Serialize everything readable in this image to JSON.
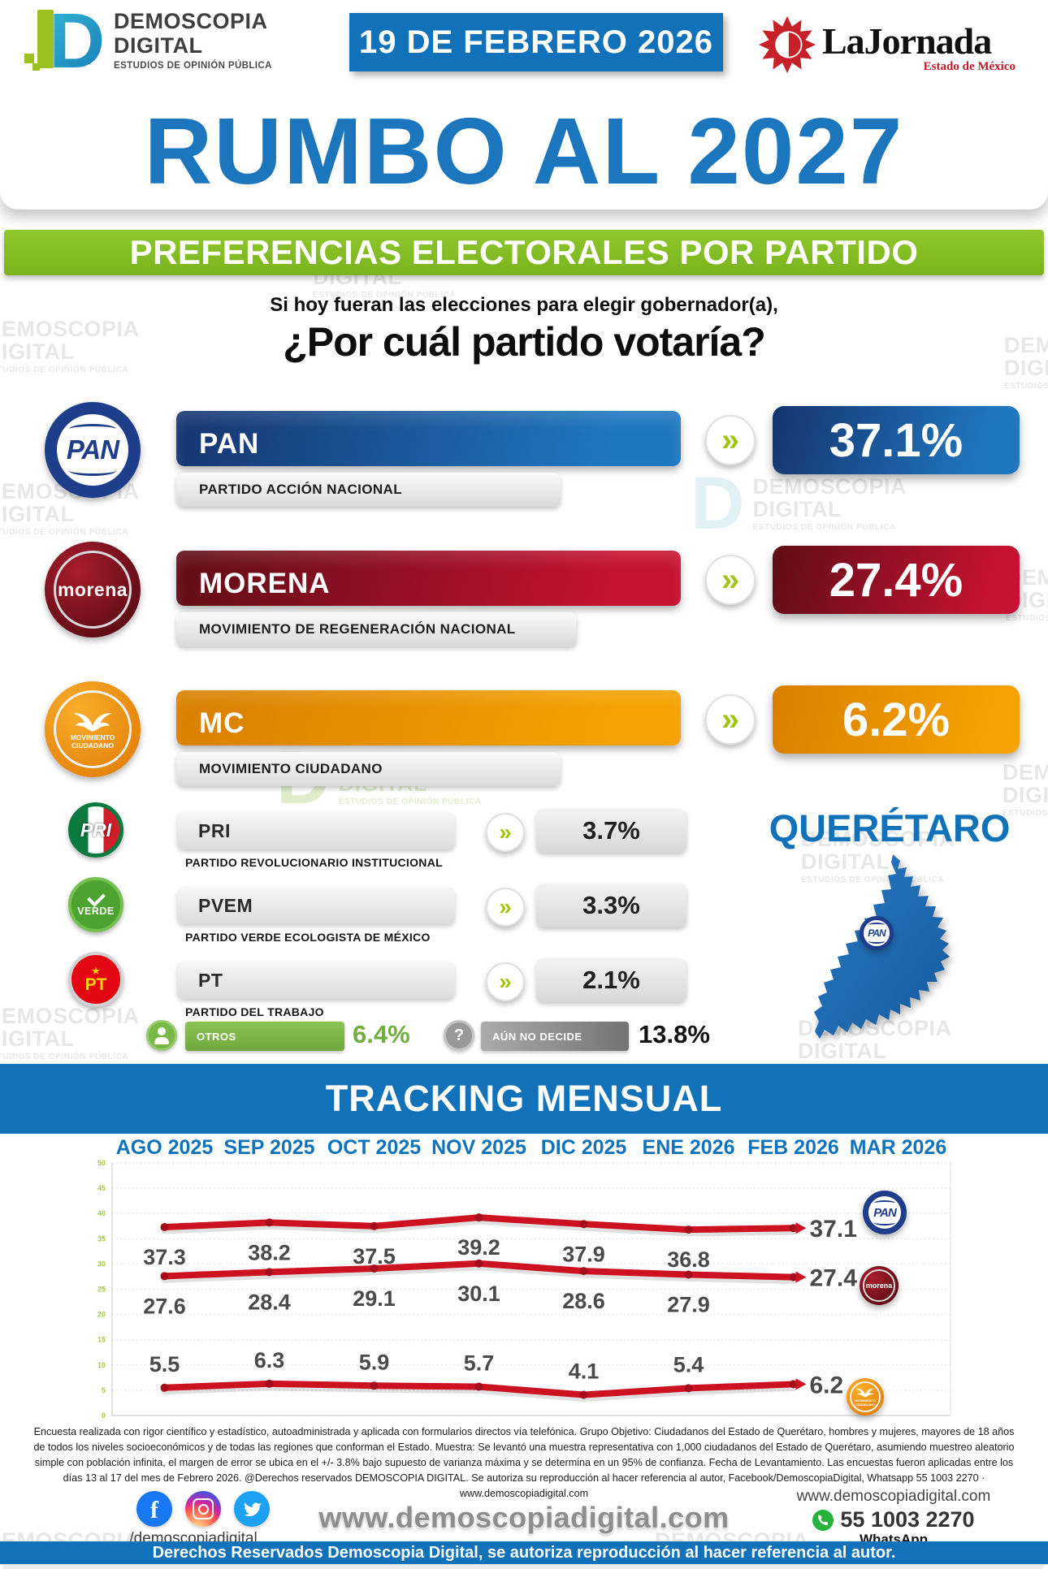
{
  "header": {
    "brand": {
      "line1": "DEMOSCOPIA",
      "line2": "DIGITAL",
      "tagline": "ESTUDIOS DE OPINIÓN PÚBLICA"
    },
    "date_badge": "19 DE FEBRERO 2026",
    "media": {
      "name": "LaJornada",
      "region": "Estado de México"
    }
  },
  "hero_title": "RUMBO AL 2027",
  "section_title": "PREFERENCIAS ELECTORALES POR PARTIDO",
  "question_line1": "Si hoy fueran las elecciones para elegir gobernador(a),",
  "question_line2": "¿Por cuál partido votaría?",
  "state_name": "QUERÉTARO",
  "ui": {
    "chevron_glyph": "»",
    "question_glyph": "?",
    "star_glyph": "★"
  },
  "main_parties": [
    {
      "abbr": "PAN",
      "full_name": "PARTIDO ACCIÓN NACIONAL",
      "value": "37.1%",
      "logo_text": "PAN",
      "color_dark": "#16346f",
      "color_light": "#1f77c0"
    },
    {
      "abbr": "MORENA",
      "full_name": "MOVIMIENTO DE REGENERACIÓN NACIONAL",
      "value": "27.4%",
      "logo_text": "morena",
      "color_dark": "#5f0d17",
      "color_light": "#c41230"
    },
    {
      "abbr": "MC",
      "full_name": "MOVIMIENTO CIUDADANO",
      "value": "6.2%",
      "logo_text": "MOVIMIENTO CIUDADANO",
      "color_dark": "#d87f00",
      "color_light": "#f5a100"
    }
  ],
  "minor_parties": [
    {
      "abbr": "PRI",
      "full_name": "PARTIDO REVOLUCIONARIO INSTITUCIONAL",
      "value": "3.7%"
    },
    {
      "abbr": "PVEM",
      "full_name": "PARTIDO VERDE ECOLOGISTA DE MÉXICO",
      "value": "3.3%",
      "logo_text": "VERDE"
    },
    {
      "abbr": "PT",
      "full_name": "PARTIDO DEL TRABAJO",
      "value": "2.1%"
    }
  ],
  "others": {
    "label": "OTROS",
    "value": "6.4%"
  },
  "undecided": {
    "label": "AÚN NO DECIDE",
    "value": "13.8%"
  },
  "tracking_title": "TRACKING MENSUAL",
  "chart_data": [
    {
      "type": "bar",
      "title": "PREFERENCIAS ELECTORALES POR PARTIDO",
      "categories": [
        "PAN",
        "MORENA",
        "MC",
        "PRI",
        "PVEM",
        "PT",
        "OTROS",
        "AÚN NO DECIDE"
      ],
      "values": [
        37.1,
        27.4,
        6.2,
        3.7,
        3.3,
        2.1,
        6.4,
        13.8
      ],
      "unit": "%"
    },
    {
      "type": "line",
      "title": "TRACKING MENSUAL",
      "categories": [
        "AGO 2025",
        "SEP 2025",
        "OCT 2025",
        "NOV 2025",
        "DIC 2025",
        "ENE 2026",
        "FEB 2026",
        "MAR 2026"
      ],
      "series": [
        {
          "name": "PAN",
          "values": [
            37.3,
            38.2,
            37.5,
            39.2,
            37.9,
            36.8,
            37.1
          ]
        },
        {
          "name": "MORENA",
          "values": [
            27.6,
            28.4,
            29.1,
            30.1,
            28.6,
            27.9,
            27.4
          ]
        },
        {
          "name": "MC",
          "values": [
            5.5,
            6.3,
            5.9,
            5.7,
            4.1,
            5.4,
            6.2
          ]
        }
      ],
      "ylim": [
        0,
        50
      ],
      "ytick_step": 5,
      "grid": true,
      "line_color": "#cc1220",
      "dot_color": "#a50d1c",
      "label_color": "#4a4a4a",
      "legend_position": "end-of-line"
    }
  ],
  "footnote": "Encuesta realizada con rigor científico y estadístico, autoadministrada y aplicada con formularios directos vía telefónica. Grupo Objetivo: Ciudadanos del Estado de Querétaro, hombres y mujeres, mayores de 18 años de todos los niveles socioeconómicos y de todas las regiones que conforman el Estado. Muestra: Se levantó una muestra representativa con 1,000 ciudadanos del Estado de Querétaro, asumiendo muestreo aleatorio simple con población infinita, el margen de error se ubica en el +/- 3.8% bajo supuesto de varianza máxima y se determina en un 95% de confianza. Fecha de Levantamiento. Las encuestas fueron aplicadas entre los días 13 al 17 del mes de Febrero 2026. @Derechos reservados DEMOSCOPIA DIGITAL. Se autoriza su reproducción al hacer referencia al autor, Facebook/DemoscopiaDigital, Whatsapp 55 1003 2270 · www.demoscopiadigital.com",
  "footer": {
    "social_handle": "/demoscopiadigital",
    "website_center": "www.demoscopiadigital.com",
    "website_right": "www.demoscopiadigital.com",
    "whatsapp_number": "55 1003 2270",
    "whatsapp_label": "WhatsApp"
  },
  "bottom_bar": "Derechos Reservados Demoscopia Digital, se autoriza reproducción al hacer referencia al autor.",
  "watermark": {
    "line1": "DEMOSCOPIA",
    "line2": "DIGITAL",
    "line3": "ESTUDIOS DE OPINIÓN PÚBLICA"
  }
}
